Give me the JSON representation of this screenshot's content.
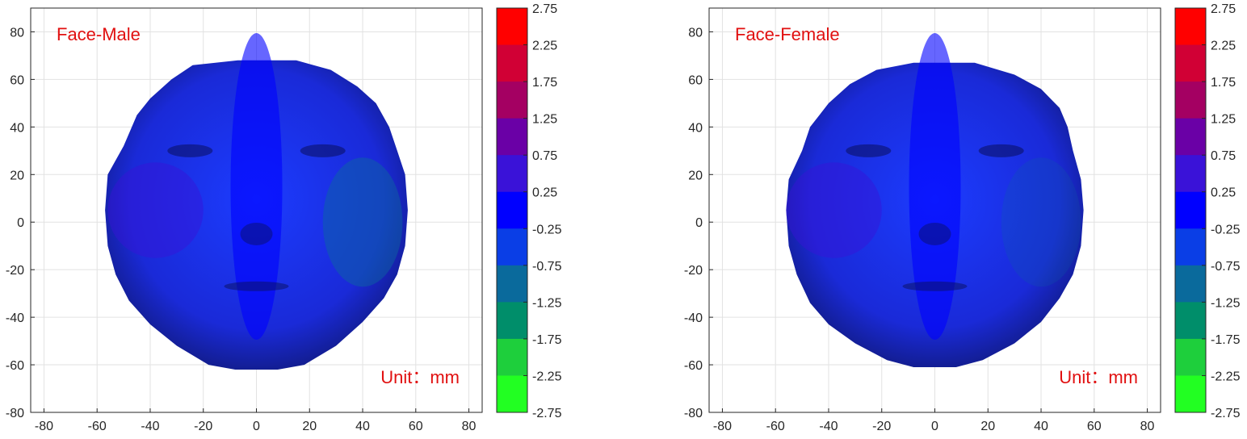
{
  "chart_data": [
    {
      "type": "heatmap",
      "title": "Face-Male",
      "annotation": "Unit：mm",
      "xlim": [
        -85,
        85
      ],
      "ylim": [
        -80,
        90
      ],
      "xticks": [
        -80,
        -60,
        -40,
        -20,
        0,
        20,
        40,
        60,
        80
      ],
      "yticks": [
        -80,
        -60,
        -40,
        -20,
        0,
        20,
        40,
        60,
        80
      ],
      "xticklabels": [
        "-80",
        "-60",
        "-40",
        "-20",
        "0",
        "20",
        "40",
        "60",
        "80"
      ],
      "yticklabels": [
        "-80",
        "-60",
        "-40",
        "-20",
        "0",
        "20",
        "40",
        "60",
        "80"
      ],
      "grid": true,
      "face_outline": [
        [
          -7,
          68
        ],
        [
          15,
          68
        ],
        [
          28,
          64
        ],
        [
          38,
          57
        ],
        [
          45,
          50
        ],
        [
          50,
          40
        ],
        [
          53,
          30
        ],
        [
          56,
          20
        ],
        [
          57,
          5
        ],
        [
          56,
          -10
        ],
        [
          53,
          -22
        ],
        [
          48,
          -32
        ],
        [
          40,
          -42
        ],
        [
          30,
          -52
        ],
        [
          18,
          -60
        ],
        [
          8,
          -62
        ],
        [
          -8,
          -62
        ],
        [
          -18,
          -60
        ],
        [
          -30,
          -52
        ],
        [
          -40,
          -43
        ],
        [
          -48,
          -33
        ],
        [
          -53,
          -22
        ],
        [
          -56,
          -10
        ],
        [
          -57,
          5
        ],
        [
          -56,
          20
        ],
        [
          -50,
          32
        ],
        [
          -45,
          45
        ],
        [
          -40,
          52
        ],
        [
          -32,
          60
        ],
        [
          -24,
          66
        ]
      ],
      "colorbar": {
        "ticks": [
          "2.75",
          "2.25",
          "1.75",
          "1.25",
          "0.75",
          "0.25",
          "-0.25",
          "-0.75",
          "-1.25",
          "-1.75",
          "-2.25",
          "-2.75"
        ],
        "colors": [
          "#ff0000",
          "#d10035",
          "#a40062",
          "#6a00a6",
          "#3a12d8",
          "#0000ff",
          "#0a3ee6",
          "#0a6a9c",
          "#008e6a",
          "#1ecf3c",
          "#22ff22"
        ],
        "range": [
          -2.75,
          2.75
        ]
      }
    },
    {
      "type": "heatmap",
      "title": "Face-Female",
      "annotation": "Unit：mm",
      "xlim": [
        -85,
        85
      ],
      "ylim": [
        -80,
        90
      ],
      "xticks": [
        -80,
        -60,
        -40,
        -20,
        0,
        20,
        40,
        60,
        80
      ],
      "yticks": [
        -80,
        -60,
        -40,
        -20,
        0,
        20,
        40,
        60,
        80
      ],
      "xticklabels": [
        "-80",
        "-60",
        "-40",
        "-20",
        "0",
        "20",
        "40",
        "60",
        "80"
      ],
      "yticklabels": [
        "-80",
        "-60",
        "-40",
        "-20",
        "0",
        "20",
        "40",
        "60",
        "80"
      ],
      "grid": true,
      "face_outline": [
        [
          -8,
          67
        ],
        [
          15,
          67
        ],
        [
          30,
          62
        ],
        [
          40,
          56
        ],
        [
          47,
          48
        ],
        [
          50,
          40
        ],
        [
          52,
          30
        ],
        [
          55,
          18
        ],
        [
          56,
          5
        ],
        [
          55,
          -10
        ],
        [
          52,
          -22
        ],
        [
          47,
          -32
        ],
        [
          40,
          -42
        ],
        [
          30,
          -51
        ],
        [
          18,
          -58
        ],
        [
          8,
          -61
        ],
        [
          -8,
          -61
        ],
        [
          -18,
          -58
        ],
        [
          -30,
          -51
        ],
        [
          -40,
          -43
        ],
        [
          -47,
          -34
        ],
        [
          -52,
          -22
        ],
        [
          -55,
          -10
        ],
        [
          -56,
          5
        ],
        [
          -55,
          18
        ],
        [
          -50,
          30
        ],
        [
          -47,
          40
        ],
        [
          -40,
          50
        ],
        [
          -32,
          58
        ],
        [
          -22,
          64
        ]
      ],
      "colorbar": {
        "ticks": [
          "2.75",
          "2.25",
          "1.75",
          "1.25",
          "0.75",
          "0.25",
          "-0.25",
          "-0.75",
          "-1.25",
          "-1.75",
          "-2.25",
          "-2.75"
        ],
        "colors": [
          "#ff0000",
          "#d10035",
          "#a40062",
          "#6a00a6",
          "#3a12d8",
          "#0000ff",
          "#0a3ee6",
          "#0a6a9c",
          "#008e6a",
          "#1ecf3c",
          "#22ff22"
        ],
        "range": [
          -2.75,
          2.75
        ]
      }
    }
  ]
}
